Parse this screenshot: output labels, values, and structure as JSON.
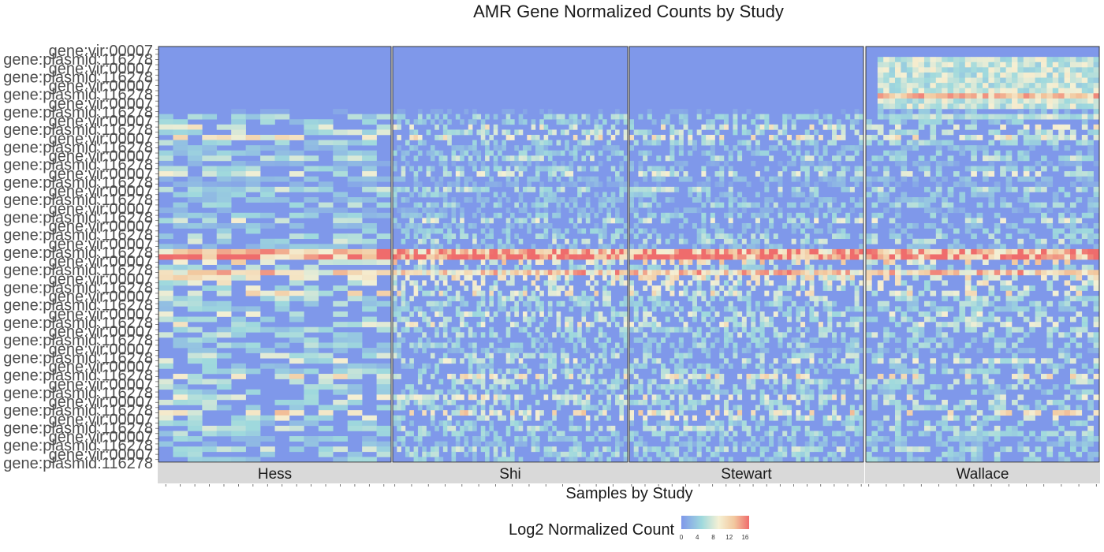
{
  "chart_data": {
    "type": "heatmap",
    "title": "AMR Gene Normalized Counts by Study",
    "xlabel": "Samples by Study",
    "ylabel": "",
    "facets": [
      {
        "name": "Hess",
        "n_samples": 16
      },
      {
        "name": "Shi",
        "n_samples": 56
      },
      {
        "name": "Stewart",
        "n_samples": 52
      },
      {
        "name": "Wallace",
        "n_samples": 40
      }
    ],
    "y_tick_labels_readable": [
      "gene:vir:00007",
      "gene:plasmid:116278"
    ],
    "n_genes": 80,
    "legend": {
      "title": "Log2 Normalized Count",
      "range": [
        0,
        17
      ],
      "ticks": [
        "0",
        "4",
        "8",
        "12",
        "16"
      ],
      "colors": [
        "#7f98ea",
        "#9fd9dd",
        "#f5f0d4",
        "#f2c89e",
        "#ef6c6c"
      ]
    },
    "row_profile": [
      0,
      0,
      0,
      0,
      0,
      0,
      0,
      0,
      0,
      0,
      0,
      0,
      1,
      5,
      4,
      8,
      6,
      9,
      5,
      3,
      4,
      6,
      2,
      5,
      7,
      3,
      2,
      6,
      4,
      3,
      5,
      2,
      4,
      7,
      3,
      4,
      5,
      6,
      3,
      14,
      16,
      10,
      5,
      12,
      9,
      8,
      7,
      9,
      6,
      5,
      4,
      7,
      6,
      8,
      5,
      6,
      4,
      5,
      3,
      6,
      7,
      4,
      5,
      9,
      6,
      5,
      4,
      8,
      6,
      5,
      10,
      7,
      4,
      6,
      5,
      4,
      3,
      6,
      5,
      4
    ]
  }
}
